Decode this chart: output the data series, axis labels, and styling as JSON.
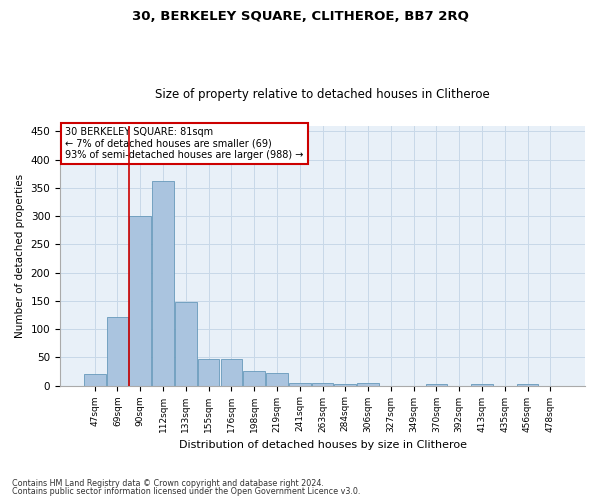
{
  "title1": "30, BERKELEY SQUARE, CLITHEROE, BB7 2RQ",
  "title2": "Size of property relative to detached houses in Clitheroe",
  "xlabel": "Distribution of detached houses by size in Clitheroe",
  "ylabel": "Number of detached properties",
  "footnote1": "Contains HM Land Registry data © Crown copyright and database right 2024.",
  "footnote2": "Contains public sector information licensed under the Open Government Licence v3.0.",
  "annotation_line1": "30 BERKELEY SQUARE: 81sqm",
  "annotation_line2": "← 7% of detached houses are smaller (69)",
  "annotation_line3": "93% of semi-detached houses are larger (988) →",
  "bar_color": "#aac4df",
  "bar_edge_color": "#6699bb",
  "grid_color": "#c8d8e8",
  "bg_color": "#e8f0f8",
  "vline_color": "#cc0000",
  "annotation_box_edge": "#cc0000",
  "categories": [
    "47sqm",
    "69sqm",
    "90sqm",
    "112sqm",
    "133sqm",
    "155sqm",
    "176sqm",
    "198sqm",
    "219sqm",
    "241sqm",
    "263sqm",
    "284sqm",
    "306sqm",
    "327sqm",
    "349sqm",
    "370sqm",
    "392sqm",
    "413sqm",
    "435sqm",
    "456sqm",
    "478sqm"
  ],
  "values": [
    20,
    122,
    300,
    362,
    148,
    47,
    47,
    25,
    22,
    5,
    5,
    3,
    4,
    0,
    0,
    3,
    0,
    3,
    0,
    3,
    0
  ],
  "ylim": [
    0,
    460
  ],
  "yticks": [
    0,
    50,
    100,
    150,
    200,
    250,
    300,
    350,
    400,
    450
  ],
  "vline_x": 1.5
}
